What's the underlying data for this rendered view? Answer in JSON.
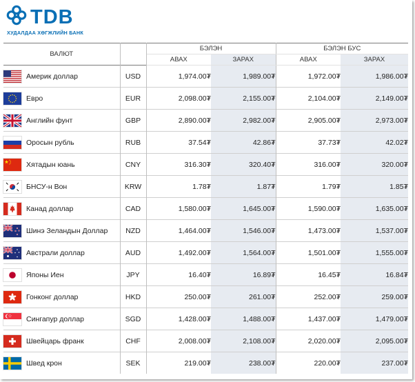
{
  "brand": {
    "logo_text": "TDB",
    "bank_name": "ХУДАЛДАА ХӨГЖЛИЙН БАНК",
    "logo_color": "#0a6fb5"
  },
  "table": {
    "headers": {
      "currency": "ВАЛЮТ",
      "cash": "БЭЛЭН",
      "noncash": "БЭЛЭН БУС",
      "buy": "АВАХ",
      "sell": "ЗАРАХ"
    },
    "rows": [
      {
        "flag": "us-flag-icon",
        "name": "Америк доллар",
        "code": "USD",
        "cash_buy": "1,974.00₮",
        "cash_sell": "1,989.00₮",
        "noncash_buy": "1,972.00₮",
        "noncash_sell": "1,986.00₮"
      },
      {
        "flag": "eu-flag-icon",
        "name": "Евро",
        "code": "EUR",
        "cash_buy": "2,098.00₮",
        "cash_sell": "2,155.00₮",
        "noncash_buy": "2,104.00₮",
        "noncash_sell": "2,149.00₮"
      },
      {
        "flag": "gb-flag-icon",
        "name": "Английн фунт",
        "code": "GBP",
        "cash_buy": "2,890.00₮",
        "cash_sell": "2,982.00₮",
        "noncash_buy": "2,905.00₮",
        "noncash_sell": "2,973.00₮"
      },
      {
        "flag": "ru-flag-icon",
        "name": "Оросын рубль",
        "code": "RUB",
        "cash_buy": "37.54₮",
        "cash_sell": "42.86₮",
        "noncash_buy": "37.73₮",
        "noncash_sell": "42.02₮"
      },
      {
        "flag": "cn-flag-icon",
        "name": "Хятадын юань",
        "code": "CNY",
        "cash_buy": "316.30₮",
        "cash_sell": "320.40₮",
        "noncash_buy": "316.00₮",
        "noncash_sell": "320.00₮"
      },
      {
        "flag": "kr-flag-icon",
        "name": "БНСУ-н Вон",
        "code": "KRW",
        "cash_buy": "1.78₮",
        "cash_sell": "1.87₮",
        "noncash_buy": "1.79₮",
        "noncash_sell": "1.85₮"
      },
      {
        "flag": "ca-flag-icon",
        "name": "Канад доллар",
        "code": "CAD",
        "cash_buy": "1,580.00₮",
        "cash_sell": "1,645.00₮",
        "noncash_buy": "1,590.00₮",
        "noncash_sell": "1,635.00₮"
      },
      {
        "flag": "nz-flag-icon",
        "name": "Шинэ Зеландын Доллар",
        "code": "NZD",
        "cash_buy": "1,464.00₮",
        "cash_sell": "1,546.00₮",
        "noncash_buy": "1,473.00₮",
        "noncash_sell": "1,537.00₮"
      },
      {
        "flag": "au-flag-icon",
        "name": "Австрали доллар",
        "code": "AUD",
        "cash_buy": "1,492.00₮",
        "cash_sell": "1,564.00₮",
        "noncash_buy": "1,501.00₮",
        "noncash_sell": "1,555.00₮"
      },
      {
        "flag": "jp-flag-icon",
        "name": "Японы Иен",
        "code": "JPY",
        "cash_buy": "16.40₮",
        "cash_sell": "16.89₮",
        "noncash_buy": "16.45₮",
        "noncash_sell": "16.84₮"
      },
      {
        "flag": "hk-flag-icon",
        "name": "Гонконг доллар",
        "code": "HKD",
        "cash_buy": "250.00₮",
        "cash_sell": "261.00₮",
        "noncash_buy": "252.00₮",
        "noncash_sell": "259.00₮"
      },
      {
        "flag": "sg-flag-icon",
        "name": "Сингапур доллар",
        "code": "SGD",
        "cash_buy": "1,428.00₮",
        "cash_sell": "1,488.00₮",
        "noncash_buy": "1,437.00₮",
        "noncash_sell": "1,479.00₮"
      },
      {
        "flag": "ch-flag-icon",
        "name": "Швейцарь франк",
        "code": "CHF",
        "cash_buy": "2,008.00₮",
        "cash_sell": "2,108.00₮",
        "noncash_buy": "2,020.00₮",
        "noncash_sell": "2,095.00₮"
      },
      {
        "flag": "se-flag-icon",
        "name": "Швед крон",
        "code": "SEK",
        "cash_buy": "219.00₮",
        "cash_sell": "238.00₮",
        "noncash_buy": "220.00₮",
        "noncash_sell": "237.00₮"
      }
    ]
  }
}
